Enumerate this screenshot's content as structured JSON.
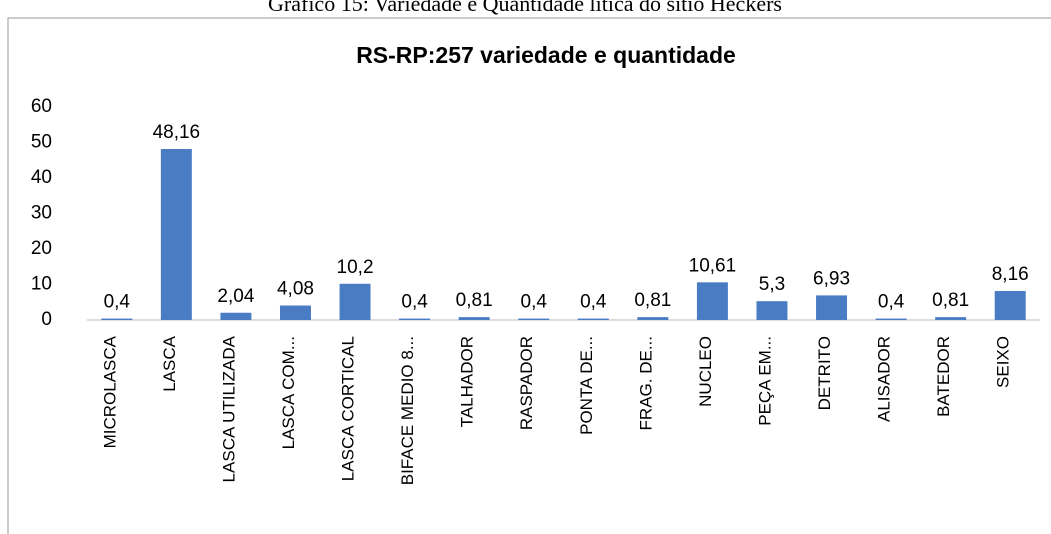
{
  "chart_data": {
    "type": "bar",
    "caption": "Gráfico 15: Variedade e Quantidade lítica do sítio Heckers",
    "title": "RS-RP:257 variedade e quantidade",
    "categories": [
      "MICROLASCA",
      "LASCA",
      "LASCA UTILIZADA",
      "LASCA COM...",
      "LASCA CORTICAL",
      "BIFACE MEDIO 8...",
      "TALHADOR",
      "RASPADOR",
      "PONTA DE...",
      "FRAG. DE...",
      "NUCLEO",
      "PEÇA EM...",
      "DETRITO",
      "ALISADOR",
      "BATEDOR",
      "SEIXO"
    ],
    "values": [
      0.4,
      48.16,
      2.04,
      4.08,
      10.2,
      0.4,
      0.81,
      0.4,
      0.4,
      0.81,
      10.61,
      5.3,
      6.93,
      0.4,
      0.81,
      8.16
    ],
    "value_labels": [
      "0,4",
      "48,16",
      "2,04",
      "4,08",
      "10,2",
      "0,4",
      "0,81",
      "0,4",
      "0,4",
      "0,81",
      "10,61",
      "5,3",
      "6,93",
      "0,4",
      "0,81",
      "8,16"
    ],
    "color": "#4a7cc4",
    "ylim": [
      0,
      60
    ],
    "yticks": [
      0,
      10,
      20,
      30,
      40,
      50,
      60
    ],
    "grid": false
  }
}
